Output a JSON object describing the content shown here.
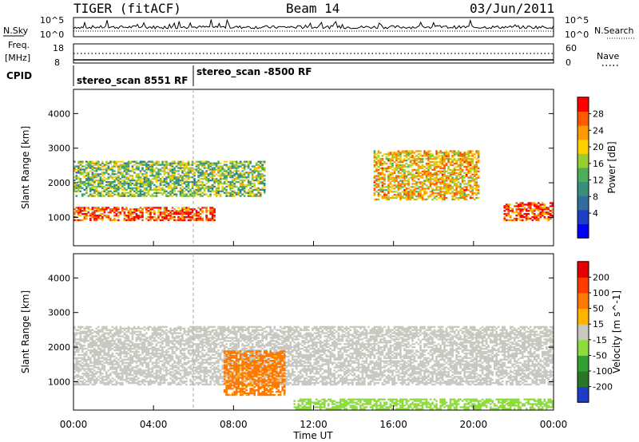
{
  "header": {
    "title": "TIGER (fitACF)",
    "beam": "Beam 14",
    "date": "03/Jun/2011"
  },
  "noise_panel": {
    "left_label": "N.Sky",
    "right_label": "N.Search",
    "left_ticks": [
      "10^5",
      "10^0"
    ],
    "right_ticks": [
      "10^5",
      "10^0"
    ]
  },
  "freq_panel": {
    "left_label_1": "Freq.",
    "left_label_2": "[MHz]",
    "left_ticks": [
      "18",
      "8"
    ],
    "right_ticks": [
      "60",
      "0"
    ],
    "right_label": "Nave"
  },
  "cpid_panel": {
    "label": "CPID",
    "programs": [
      {
        "name": "stereo_scan 8551 RF",
        "start_hour": 0
      },
      {
        "name": "stereo_scan -8500 RF",
        "start_hour": 6.0
      }
    ]
  },
  "x_axis": {
    "label": "Time UT",
    "ticks": [
      "00:00",
      "04:00",
      "08:00",
      "12:00",
      "16:00",
      "20:00",
      "00:00"
    ],
    "range_hours": [
      0,
      24
    ]
  },
  "chart_data": [
    {
      "type": "heatmap",
      "ylabel": "Slant Range [km]",
      "yticks": [
        1000,
        2000,
        3000,
        4000
      ],
      "ylim": [
        180,
        4700
      ],
      "colorbar": {
        "label": "Power [dB]",
        "ticks": [
          "4",
          "8",
          "12",
          "16",
          "20",
          "24",
          "28"
        ],
        "range": [
          0,
          32
        ],
        "colors": [
          "#0000ff",
          "#1f3fc8",
          "#2e6fa0",
          "#3a8f7a",
          "#4cad5a",
          "#9acd32",
          "#ffd000",
          "#ff9900",
          "#ff5a00",
          "#ff0000"
        ]
      },
      "echo_regions": [
        {
          "feature": "strong near-range band",
          "t_start": 0,
          "t_end": 7,
          "range_km": [
            900,
            1300
          ],
          "value": 28
        },
        {
          "feature": "upper band",
          "t_start": 0,
          "t_end": 9.5,
          "range_km": [
            1600,
            2600
          ],
          "value": 16
        },
        {
          "feature": "evening arc",
          "t_start": 15,
          "t_end": 20.3,
          "range_km": [
            1500,
            2900
          ],
          "value": 22
        },
        {
          "feature": "late band",
          "t_start": 21.5,
          "t_end": 24,
          "range_km": [
            900,
            1400
          ],
          "value": 28
        }
      ]
    },
    {
      "type": "heatmap",
      "ylabel": "Slant Range [km]",
      "yticks": [
        1000,
        2000,
        3000,
        4000
      ],
      "ylim": [
        180,
        4700
      ],
      "colorbar": {
        "label": "Velocity [m s^-1]",
        "ticks": [
          "200",
          "100",
          "50",
          "15",
          "-15",
          "-50",
          "-100",
          "-200"
        ],
        "range": [
          -250,
          250
        ],
        "colors": [
          "#1e3cc8",
          "#287828",
          "#32a032",
          "#8cdc3c",
          "#c8c8c0",
          "#ffb400",
          "#ff7800",
          "#ff3c00",
          "#e60000"
        ]
      },
      "echo_regions": [
        {
          "feature": "ground scatter band",
          "t_start": 0,
          "t_end": 24,
          "range_km": [
            900,
            2600
          ],
          "value": 0
        },
        {
          "feature": "positive velocity patch",
          "t_start": 7.5,
          "t_end": 10.5,
          "range_km": [
            600,
            1900
          ],
          "value": 100
        },
        {
          "feature": "near-range ionospheric echoes",
          "t_start": 11,
          "t_end": 24,
          "range_km": [
            200,
            500
          ],
          "value": -60
        }
      ]
    }
  ]
}
